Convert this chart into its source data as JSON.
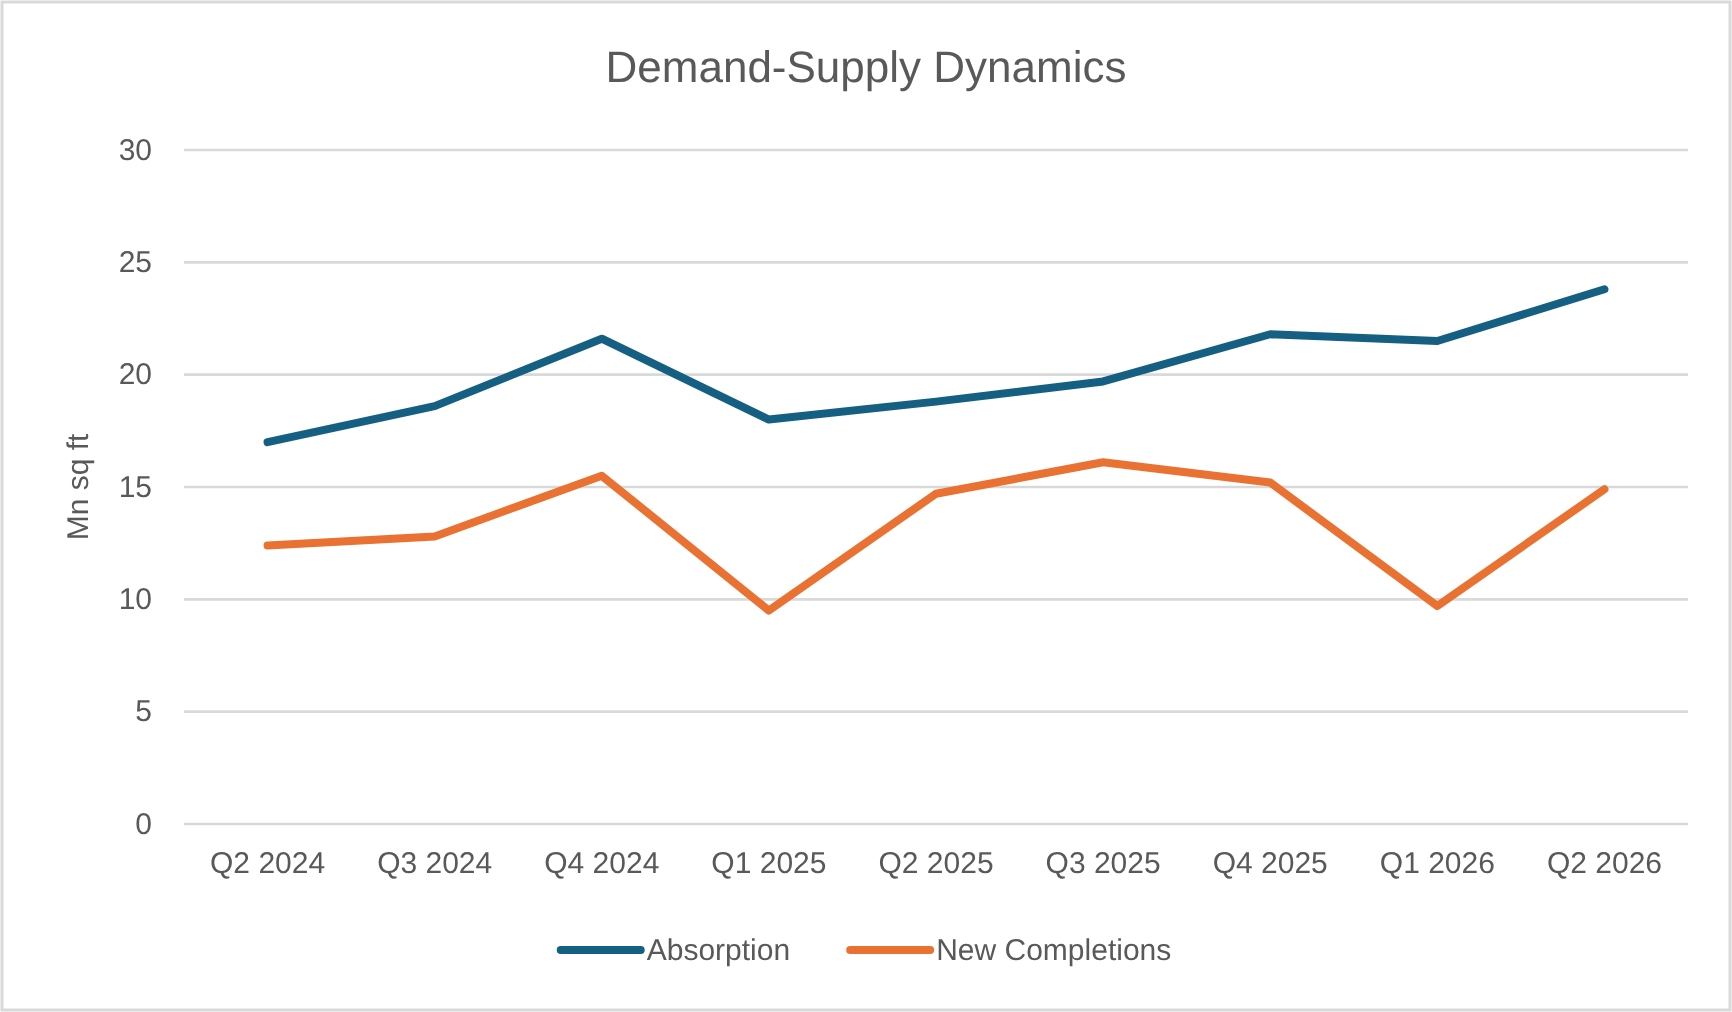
{
  "chart_data": {
    "type": "line",
    "title": "Demand-Supply Dynamics",
    "ylabel": "Mn sq ft",
    "categories": [
      "Q2 2024",
      "Q3 2024",
      "Q4 2024",
      "Q1 2025",
      "Q2 2025",
      "Q3 2025",
      "Q4 2025",
      "Q1 2026",
      "Q2 2026"
    ],
    "series": [
      {
        "name": "Absorption",
        "color": "#156082",
        "values": [
          17.0,
          18.6,
          21.6,
          18.0,
          18.8,
          19.7,
          21.8,
          21.5,
          23.8
        ]
      },
      {
        "name": "New Completions",
        "color": "#e97132",
        "values": [
          12.4,
          12.8,
          15.5,
          9.5,
          14.7,
          16.1,
          15.2,
          9.7,
          14.9
        ]
      }
    ],
    "ylim": [
      0,
      30
    ],
    "yticks": [
      0,
      5,
      10,
      15,
      20,
      25,
      30
    ],
    "grid": "y",
    "legend": "bottom",
    "marker": "none",
    "line_style": "solid"
  }
}
